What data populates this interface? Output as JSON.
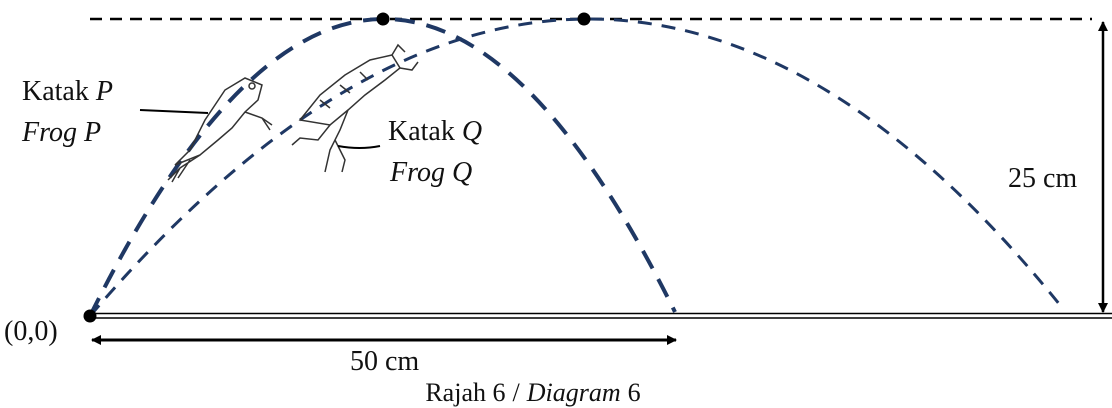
{
  "frog_p": {
    "malay": "Katak",
    "malay_letter": "P",
    "english": "Frog P"
  },
  "frog_q": {
    "malay": "Katak",
    "malay_letter": "Q",
    "english": "Frog Q"
  },
  "height_label": "25 cm",
  "origin_label": "(0,0)",
  "distance_label": "50 cm",
  "caption": {
    "malay": "Rajah 6",
    "separator": "/",
    "english_word": "Diagram",
    "number": "6"
  }
}
